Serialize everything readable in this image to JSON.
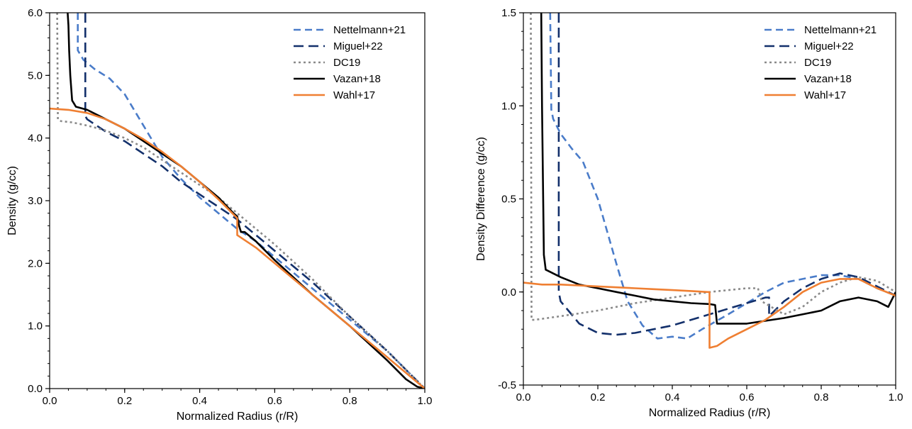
{
  "chart_data": [
    {
      "type": "line",
      "xlabel": "Normalized Radius (r/R)",
      "ylabel": "Density (g/cc)",
      "xlim": [
        0,
        1
      ],
      "ylim": [
        0,
        6
      ],
      "xticks": [
        0.0,
        0.2,
        0.4,
        0.6,
        0.8,
        1.0
      ],
      "yticks": [
        0.0,
        1.0,
        2.0,
        3.0,
        4.0,
        5.0,
        6.0
      ],
      "xtick_labels": [
        "0.0",
        "0.2",
        "0.4",
        "0.6",
        "0.8",
        "1.0"
      ],
      "ytick_labels": [
        "0.0",
        "1.0",
        "2.0",
        "3.0",
        "4.0",
        "5.0",
        "6.0"
      ],
      "legend_position": "top-right",
      "grid": false,
      "series": [
        {
          "name": "Nettelmann+21",
          "color": "#4a7cc9",
          "dash": "10,6",
          "x": [
            0.075,
            0.075,
            0.08,
            0.09,
            0.12,
            0.16,
            0.2,
            0.26,
            0.3,
            0.35,
            0.4,
            0.45,
            0.5,
            0.55,
            0.6,
            0.7,
            0.8,
            0.9,
            0.95,
            1.0
          ],
          "y": [
            6.0,
            5.4,
            5.35,
            5.25,
            5.1,
            4.95,
            4.7,
            4.1,
            3.7,
            3.35,
            3.05,
            2.8,
            2.55,
            2.35,
            2.1,
            1.6,
            1.1,
            0.6,
            0.3,
            0.0
          ]
        },
        {
          "name": "Miguel+22",
          "color": "#13306b",
          "dash": "14,7",
          "x": [
            0.095,
            0.095,
            0.1,
            0.15,
            0.2,
            0.25,
            0.3,
            0.35,
            0.4,
            0.45,
            0.5,
            0.55,
            0.6,
            0.7,
            0.8,
            0.9,
            0.95,
            1.0
          ],
          "y": [
            6.0,
            4.35,
            4.3,
            4.1,
            3.95,
            3.75,
            3.55,
            3.3,
            3.1,
            2.9,
            2.7,
            2.45,
            2.2,
            1.7,
            1.15,
            0.6,
            0.3,
            0.0
          ]
        },
        {
          "name": "DC19",
          "color": "#8a8a8a",
          "dash": "3,4",
          "x": [
            0.02,
            0.022,
            0.03,
            0.06,
            0.1,
            0.15,
            0.2,
            0.25,
            0.3,
            0.35,
            0.4,
            0.45,
            0.5,
            0.55,
            0.6,
            0.7,
            0.8,
            0.9,
            0.95,
            1.0
          ],
          "y": [
            6.0,
            4.3,
            4.27,
            4.25,
            4.2,
            4.12,
            4.0,
            3.85,
            3.65,
            3.45,
            3.25,
            3.05,
            2.8,
            2.55,
            2.3,
            1.75,
            1.15,
            0.6,
            0.3,
            0.0
          ]
        },
        {
          "name": "Vazan+18",
          "color": "#000000",
          "dash": "",
          "x": [
            0.048,
            0.05,
            0.052,
            0.055,
            0.06,
            0.065,
            0.07,
            0.1,
            0.15,
            0.2,
            0.25,
            0.3,
            0.35,
            0.4,
            0.45,
            0.49,
            0.5,
            0.505,
            0.51,
            0.52,
            0.55,
            0.6,
            0.7,
            0.8,
            0.9,
            0.95,
            0.98,
            1.0
          ],
          "y": [
            6.0,
            5.8,
            5.4,
            5.0,
            4.6,
            4.55,
            4.5,
            4.45,
            4.3,
            4.15,
            3.95,
            3.75,
            3.55,
            3.3,
            3.05,
            2.8,
            2.75,
            2.6,
            2.5,
            2.5,
            2.35,
            2.05,
            1.5,
            1.0,
            0.45,
            0.15,
            0.03,
            0.0
          ]
        },
        {
          "name": "Wahl+17",
          "color": "#ef7f32",
          "dash": "",
          "x": [
            0.0,
            0.05,
            0.1,
            0.15,
            0.2,
            0.25,
            0.3,
            0.35,
            0.4,
            0.45,
            0.5,
            0.5,
            0.55,
            0.6,
            0.7,
            0.8,
            0.9,
            0.95,
            1.0
          ],
          "y": [
            4.47,
            4.45,
            4.4,
            4.3,
            4.15,
            3.98,
            3.78,
            3.55,
            3.3,
            3.02,
            2.72,
            2.45,
            2.25,
            2.0,
            1.5,
            1.0,
            0.5,
            0.25,
            0.0
          ]
        }
      ]
    },
    {
      "type": "line",
      "xlabel": "Normalized Radius (r/R)",
      "ylabel": "Density Difference (g/cc)",
      "xlim": [
        0,
        1
      ],
      "ylim": [
        -0.5,
        1.5
      ],
      "xticks": [
        0.0,
        0.2,
        0.4,
        0.6,
        0.8,
        1.0
      ],
      "yticks": [
        -0.5,
        0.0,
        0.5,
        1.0,
        1.5
      ],
      "xtick_labels": [
        "0.0",
        "0.2",
        "0.4",
        "0.6",
        "0.8",
        "1.0"
      ],
      "ytick_labels": [
        "-0.5",
        "0.0",
        "0.5",
        "1.0",
        "1.5"
      ],
      "legend_position": "top-right",
      "grid": false,
      "series": [
        {
          "name": "Nettelmann+21",
          "color": "#4a7cc9",
          "dash": "10,6",
          "x": [
            0.072,
            0.075,
            0.08,
            0.1,
            0.13,
            0.16,
            0.2,
            0.25,
            0.28,
            0.32,
            0.36,
            0.4,
            0.44,
            0.48,
            0.55,
            0.6,
            0.65,
            0.7,
            0.75,
            0.8,
            0.85,
            0.9,
            0.95,
            1.0
          ],
          "y": [
            1.5,
            0.98,
            0.93,
            0.85,
            0.77,
            0.7,
            0.5,
            0.15,
            -0.05,
            -0.18,
            -0.25,
            -0.24,
            -0.25,
            -0.2,
            -0.12,
            -0.06,
            0.0,
            0.05,
            0.07,
            0.09,
            0.09,
            0.07,
            0.02,
            -0.02
          ]
        },
        {
          "name": "Miguel+22",
          "color": "#13306b",
          "dash": "14,7",
          "x": [
            0.095,
            0.095,
            0.1,
            0.15,
            0.2,
            0.25,
            0.3,
            0.4,
            0.5,
            0.6,
            0.65,
            0.66,
            0.66,
            0.7,
            0.75,
            0.8,
            0.85,
            0.9,
            0.95,
            1.0
          ],
          "y": [
            1.5,
            0.0,
            -0.05,
            -0.17,
            -0.22,
            -0.23,
            -0.22,
            -0.18,
            -0.12,
            -0.06,
            -0.03,
            -0.03,
            -0.13,
            -0.05,
            0.02,
            0.07,
            0.1,
            0.08,
            0.03,
            -0.02
          ]
        },
        {
          "name": "DC19",
          "color": "#8a8a8a",
          "dash": "3,4",
          "x": [
            0.02,
            0.022,
            0.03,
            0.1,
            0.2,
            0.3,
            0.4,
            0.5,
            0.6,
            0.63,
            0.64,
            0.7,
            0.75,
            0.8,
            0.85,
            0.9,
            0.95,
            1.0
          ],
          "y": [
            1.5,
            -0.15,
            -0.15,
            -0.13,
            -0.1,
            -0.06,
            -0.03,
            0.0,
            0.02,
            0.02,
            -0.05,
            -0.12,
            -0.08,
            0.0,
            0.05,
            0.08,
            0.06,
            0.0
          ]
        },
        {
          "name": "Vazan+18",
          "color": "#000000",
          "dash": "",
          "x": [
            0.048,
            0.05,
            0.055,
            0.06,
            0.07,
            0.1,
            0.15,
            0.2,
            0.25,
            0.3,
            0.35,
            0.4,
            0.45,
            0.5,
            0.515,
            0.52,
            0.6,
            0.7,
            0.8,
            0.85,
            0.9,
            0.95,
            0.98,
            1.0
          ],
          "y": [
            1.5,
            1.0,
            0.2,
            0.12,
            0.11,
            0.08,
            0.04,
            0.02,
            0.0,
            -0.02,
            -0.04,
            -0.05,
            -0.06,
            -0.065,
            -0.07,
            -0.17,
            -0.17,
            -0.14,
            -0.1,
            -0.05,
            -0.03,
            -0.05,
            -0.08,
            0.0
          ]
        },
        {
          "name": "Wahl+17",
          "color": "#ef7f32",
          "dash": "",
          "x": [
            0.0,
            0.05,
            0.1,
            0.15,
            0.2,
            0.25,
            0.3,
            0.35,
            0.4,
            0.45,
            0.495,
            0.5,
            0.5,
            0.52,
            0.55,
            0.6,
            0.65,
            0.7,
            0.75,
            0.8,
            0.85,
            0.9,
            0.95,
            1.0
          ],
          "y": [
            0.05,
            0.04,
            0.04,
            0.035,
            0.03,
            0.025,
            0.02,
            0.015,
            0.01,
            0.005,
            0.0,
            0.0,
            -0.3,
            -0.29,
            -0.25,
            -0.2,
            -0.15,
            -0.08,
            0.0,
            0.05,
            0.07,
            0.07,
            0.02,
            -0.02
          ]
        }
      ]
    }
  ]
}
